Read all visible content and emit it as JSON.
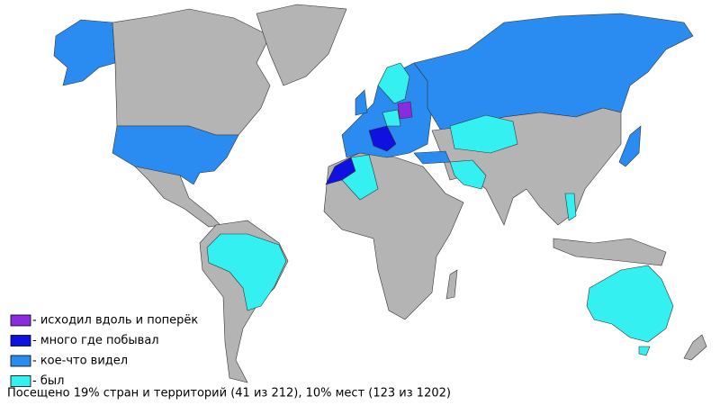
{
  "legend": [
    {
      "label": "- исходил вдоль и поперёк",
      "color": "#8a2be2"
    },
    {
      "label": "- много где побывал",
      "color": "#1010e0"
    },
    {
      "label": "- кое-что видел",
      "color": "#2a8cf0"
    },
    {
      "label": "- был",
      "color": "#35f0f0"
    }
  ],
  "summary": "Посещено 19% стран и территорий (41 из 212), 10% мест (123 из 1202)"
}
